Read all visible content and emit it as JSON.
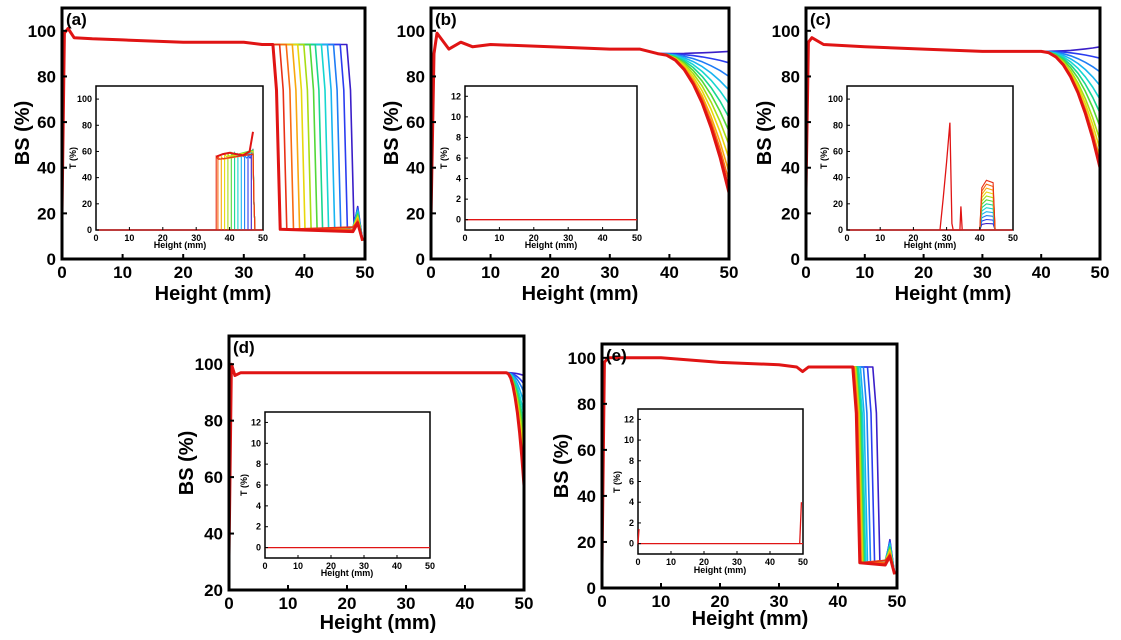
{
  "colors": {
    "rainbow": [
      "#3a1ec8",
      "#2a3cf0",
      "#1f7cf5",
      "#18b4f0",
      "#16d6d0",
      "#18d690",
      "#52d838",
      "#a8dd14",
      "#e8d80c",
      "#f8a80e",
      "#f86a12",
      "#e83016",
      "#e01414"
    ],
    "single_red": "#e01414",
    "axis": "#000000"
  },
  "chart_data": [
    {
      "panel_label": "(a)",
      "type": "line",
      "xlabel": "Height (mm)",
      "ylabel": "BS (%)",
      "xlim": [
        0,
        50
      ],
      "ylim": [
        0,
        110
      ],
      "xticks": [
        "0",
        "10",
        "20",
        "30",
        "40",
        "50"
      ],
      "yticks": [
        "0",
        "20",
        "40",
        "60",
        "80",
        "100"
      ],
      "main_profile": [
        [
          0,
          20
        ],
        [
          0.4,
          99
        ],
        [
          1,
          101
        ],
        [
          2,
          97
        ],
        [
          5,
          96.5
        ],
        [
          10,
          96
        ],
        [
          20,
          95
        ],
        [
          30,
          95
        ],
        [
          33,
          94
        ]
      ],
      "drop_fronts": [
        47.6,
        46.5,
        45.4,
        44.4,
        43.4,
        42.4,
        41.5,
        40.5,
        39.5,
        38.6,
        37.6,
        36.5,
        35.4
      ],
      "drop_low": 11,
      "inset": {
        "xlabel": "Height (mm)",
        "ylabel": "T (%)",
        "xlim": [
          0,
          50
        ],
        "ylim": [
          0,
          110
        ],
        "xticks": [
          "0",
          "10",
          "20",
          "30",
          "40",
          "50"
        ],
        "yticks": [
          "0",
          "20",
          "40",
          "60",
          "80",
          "100"
        ],
        "baseline": 0,
        "edges": [
          46.5,
          45.5,
          44.5,
          43.5,
          42.5,
          41.5,
          40.5,
          39.5,
          38.5,
          37.5,
          36.5,
          36
        ],
        "plateau": [
          [
            36,
            56
          ],
          [
            38,
            58
          ],
          [
            40,
            59
          ],
          [
            42,
            58
          ],
          [
            44,
            57
          ],
          [
            46,
            60
          ],
          [
            47,
            75
          ]
        ]
      }
    },
    {
      "panel_label": "(b)",
      "type": "line",
      "xlabel": "Height (mm)",
      "ylabel": "BS (%)",
      "xlim": [
        0,
        50
      ],
      "ylim": [
        0,
        110
      ],
      "xticks": [
        "0",
        "10",
        "20",
        "30",
        "40",
        "50"
      ],
      "yticks": [
        "0",
        "20",
        "40",
        "60",
        "80",
        "100"
      ],
      "main_profile": [
        [
          0,
          18
        ],
        [
          0.5,
          90
        ],
        [
          1,
          99
        ],
        [
          3,
          92
        ],
        [
          5,
          95
        ],
        [
          7,
          93
        ],
        [
          10,
          94
        ],
        [
          20,
          93
        ],
        [
          30,
          92
        ],
        [
          35,
          92
        ],
        [
          38,
          90
        ]
      ],
      "tail_ends": [
        91,
        86,
        80,
        74,
        68,
        62,
        56,
        50,
        44,
        38,
        34,
        31,
        29
      ],
      "inset": {
        "xlabel": "Height (mm)",
        "ylabel": "T (%)",
        "xlim": [
          0,
          50
        ],
        "ylim": [
          -1,
          13
        ],
        "xticks": [
          "0",
          "10",
          "20",
          "30",
          "40",
          "50"
        ],
        "yticks": [
          "0",
          "2",
          "4",
          "6",
          "8",
          "10",
          "12"
        ],
        "baseline": 0
      }
    },
    {
      "panel_label": "(c)",
      "type": "line",
      "xlabel": "Height (mm)",
      "ylabel": "BS (%)",
      "xlim": [
        0,
        50
      ],
      "ylim": [
        0,
        110
      ],
      "xticks": [
        "0",
        "10",
        "20",
        "30",
        "40",
        "50"
      ],
      "yticks": [
        "0",
        "20",
        "40",
        "60",
        "80",
        "100"
      ],
      "main_profile": [
        [
          0,
          30
        ],
        [
          0.4,
          95
        ],
        [
          1,
          97
        ],
        [
          3,
          94
        ],
        [
          10,
          93
        ],
        [
          20,
          92
        ],
        [
          30,
          91
        ],
        [
          40,
          91
        ]
      ],
      "tail_ends": [
        93,
        88,
        82,
        76,
        70,
        64,
        58,
        52,
        48,
        44,
        42,
        41,
        40
      ],
      "inset": {
        "xlabel": "Height (mm)",
        "ylabel": "T (%)",
        "xlim": [
          0,
          50
        ],
        "ylim": [
          0,
          110
        ],
        "xticks": [
          "0",
          "10",
          "20",
          "30",
          "40",
          "50"
        ],
        "yticks": [
          "0",
          "20",
          "40",
          "60",
          "80",
          "100"
        ],
        "baseline": 0,
        "spike": [
          [
            28,
            0
          ],
          [
            29,
            25
          ],
          [
            30,
            52
          ],
          [
            31,
            82
          ],
          [
            31.6,
            5
          ],
          [
            32,
            0
          ],
          [
            34,
            0
          ],
          [
            34.3,
            18
          ],
          [
            34.7,
            0
          ]
        ],
        "bumps": [
          5,
          8,
          11,
          14,
          17,
          20,
          23,
          26,
          29,
          32,
          35,
          38
        ]
      }
    },
    {
      "panel_label": "(d)",
      "type": "line",
      "xlabel": "Height (mm)",
      "ylabel": "BS (%)",
      "xlim": [
        0,
        50
      ],
      "ylim": [
        20,
        110
      ],
      "xticks": [
        "0",
        "10",
        "20",
        "30",
        "40",
        "50"
      ],
      "yticks": [
        "20",
        "40",
        "60",
        "80",
        "100"
      ],
      "main_profile": [
        [
          0,
          32
        ],
        [
          0.4,
          100
        ],
        [
          1,
          96
        ],
        [
          2,
          97
        ],
        [
          10,
          97
        ],
        [
          20,
          97
        ],
        [
          30,
          97
        ],
        [
          40,
          97
        ],
        [
          47,
          97
        ]
      ],
      "tail_ends": [
        96,
        93,
        90,
        86,
        82,
        78,
        74,
        70,
        66,
        62,
        60,
        58,
        57
      ],
      "inset": {
        "xlabel": "Height (mm)",
        "ylabel": "T (%)",
        "xlim": [
          0,
          50
        ],
        "ylim": [
          -1,
          13
        ],
        "xticks": [
          "0",
          "10",
          "20",
          "30",
          "40",
          "50"
        ],
        "yticks": [
          "0",
          "2",
          "4",
          "6",
          "8",
          "10",
          "12"
        ],
        "baseline": 0
      }
    },
    {
      "panel_label": "(e)",
      "type": "line",
      "xlabel": "Height (mm)",
      "ylabel": "BS (%)",
      "xlim": [
        0,
        50
      ],
      "ylim": [
        0,
        106
      ],
      "xticks": [
        "0",
        "10",
        "20",
        "30",
        "40",
        "50"
      ],
      "yticks": [
        "0",
        "20",
        "40",
        "60",
        "80",
        "100"
      ],
      "main_profile": [
        [
          0,
          10
        ],
        [
          0.4,
          98
        ],
        [
          1,
          100
        ],
        [
          5,
          100
        ],
        [
          10,
          100
        ],
        [
          20,
          98
        ],
        [
          30,
          97
        ],
        [
          33,
          96
        ],
        [
          34,
          94
        ],
        [
          35,
          96
        ],
        [
          38,
          96
        ]
      ],
      "drop_fronts": [
        46.5,
        45.6,
        44.9,
        44.4,
        44.1,
        43.9,
        43.7,
        43.6,
        43.5,
        43.4,
        43.3,
        43.2,
        43.1
      ],
      "drop_low": 9,
      "inset": {
        "xlabel": "Height (mm)",
        "ylabel": "T (%)",
        "xlim": [
          0,
          50
        ],
        "ylim": [
          -1,
          13
        ],
        "xticks": [
          "0",
          "10",
          "20",
          "30",
          "40",
          "50"
        ],
        "yticks": [
          "0",
          "2",
          "4",
          "6",
          "8",
          "10",
          "12"
        ],
        "baseline": 0
      }
    }
  ]
}
